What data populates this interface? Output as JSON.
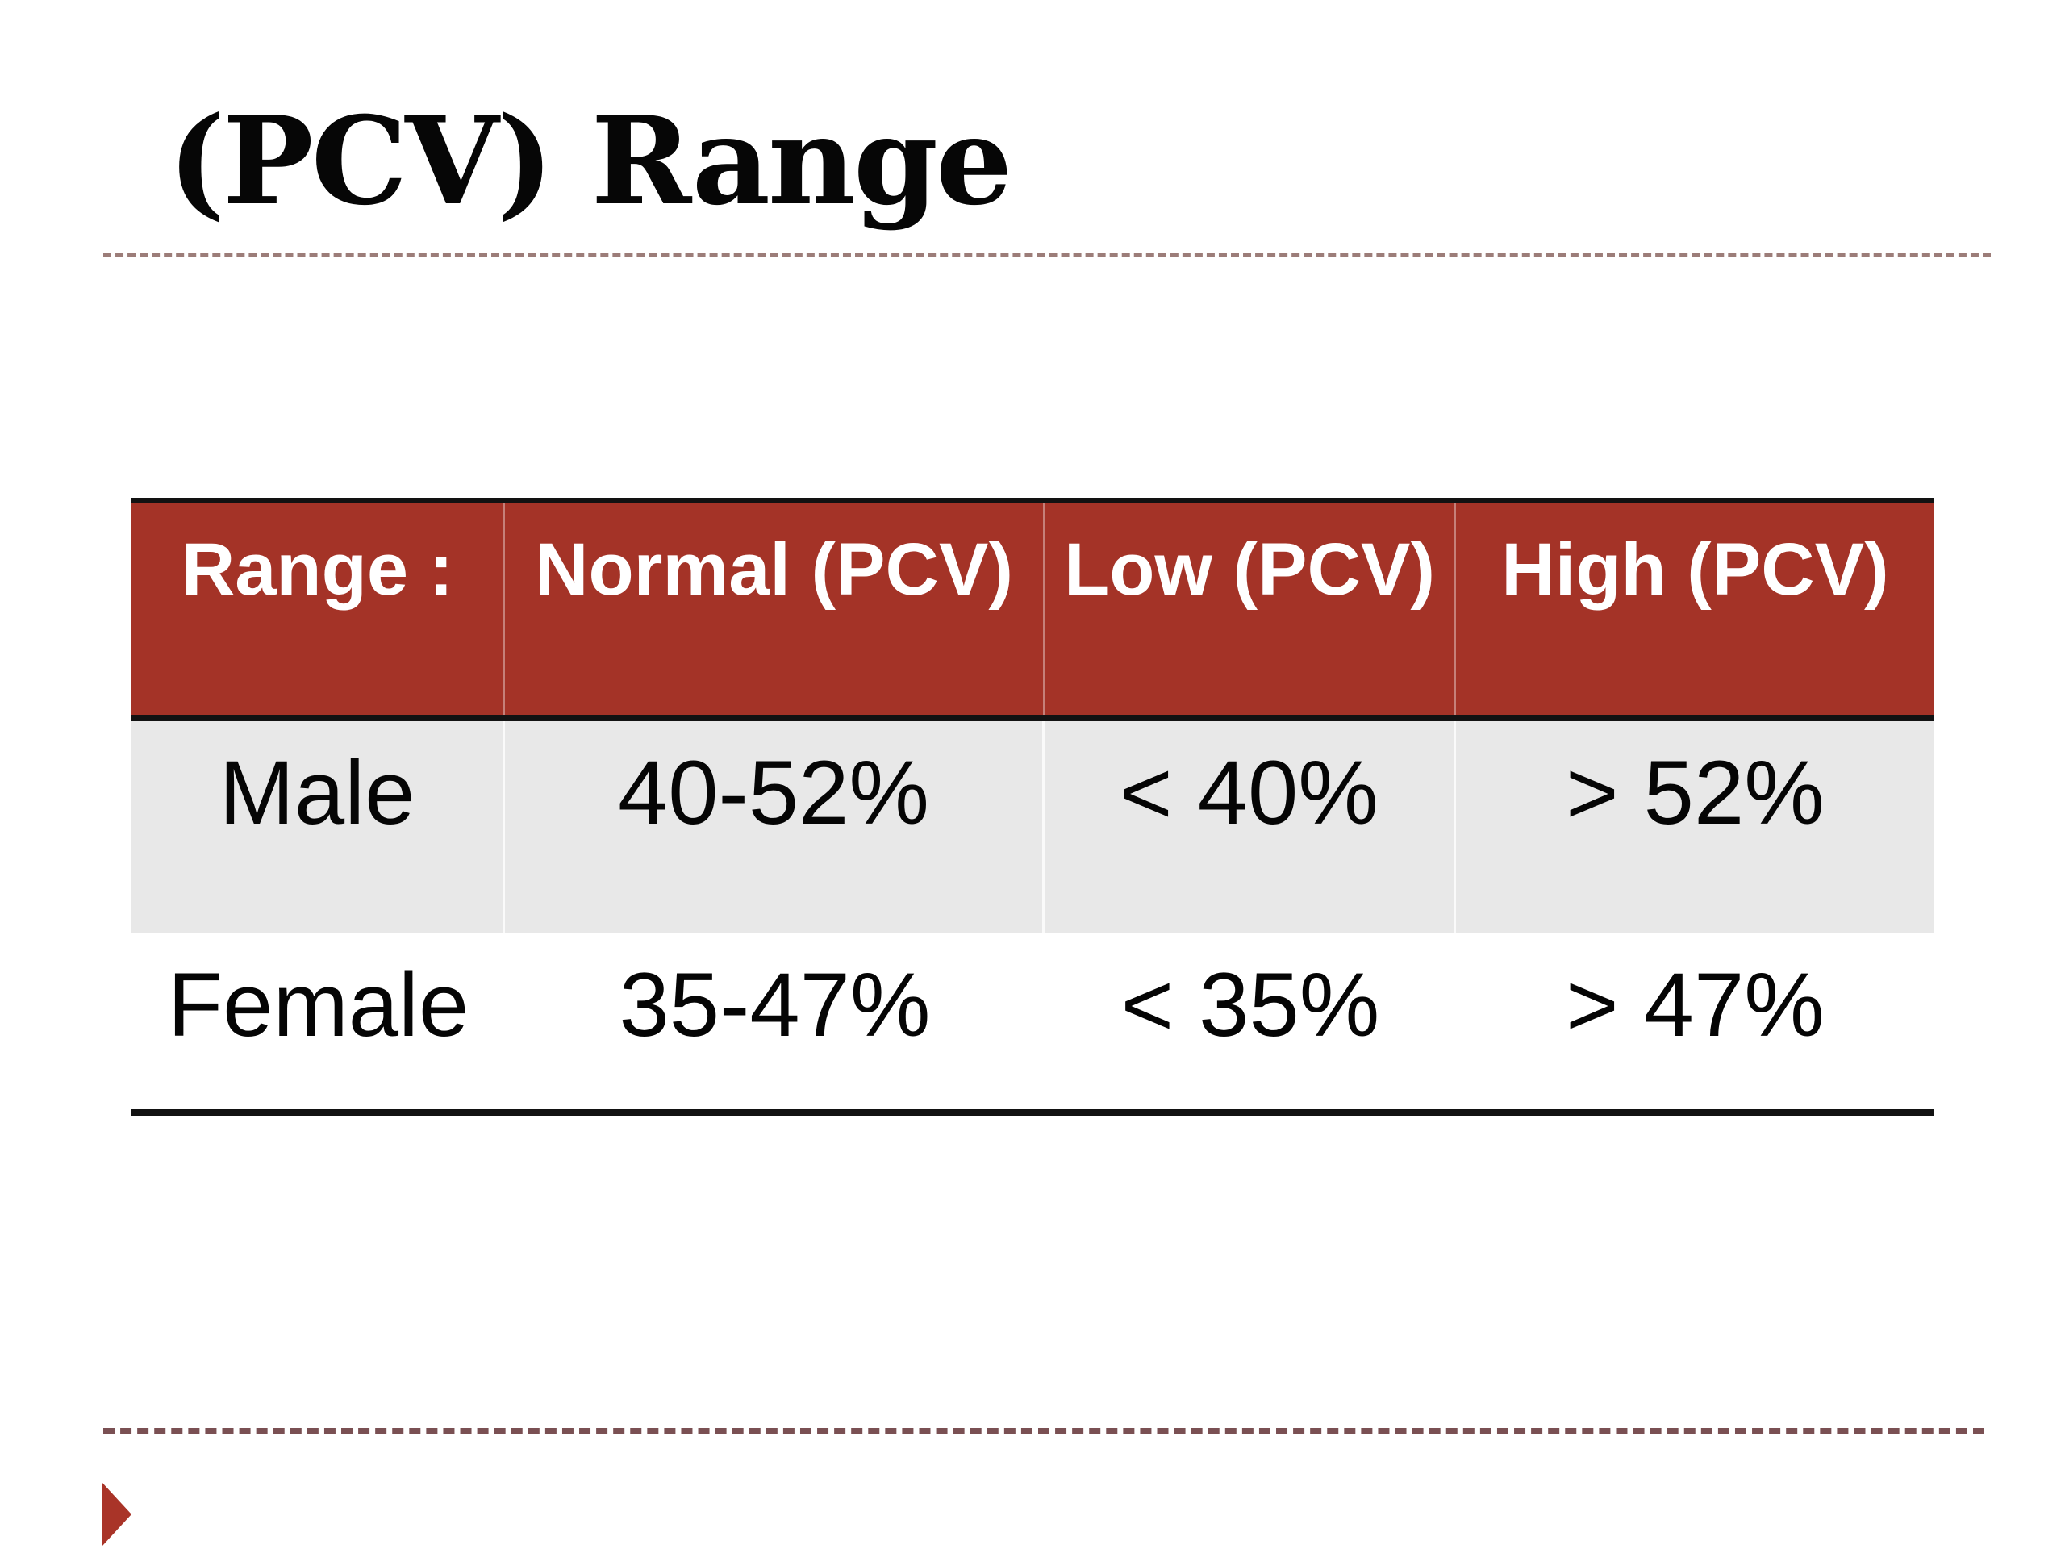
{
  "slide": {
    "title": "(PCV) Range"
  },
  "table": {
    "headers": [
      "Range :",
      "Normal (PCV)",
      "Low (PCV)",
      "High (PCV)"
    ],
    "rows": [
      [
        "Male",
        "40-52%",
        "< 40%",
        "> 52%"
      ],
      [
        "Female",
        "35-47%",
        "< 35%",
        "> 47%"
      ]
    ]
  },
  "icons": {
    "slide_marker": "right-triangle"
  },
  "colors": {
    "header_bg": "#A43327",
    "header_text": "#FFFFFF",
    "row_alt_bg": "#E8E8E8",
    "row_bg": "#FFFFFF",
    "rule_black": "#121212",
    "title_dotted_rule": "#9C7D79",
    "footer_dashed_rule": "#7A5053",
    "marker_red": "#A93428",
    "body_text": "#050505"
  }
}
